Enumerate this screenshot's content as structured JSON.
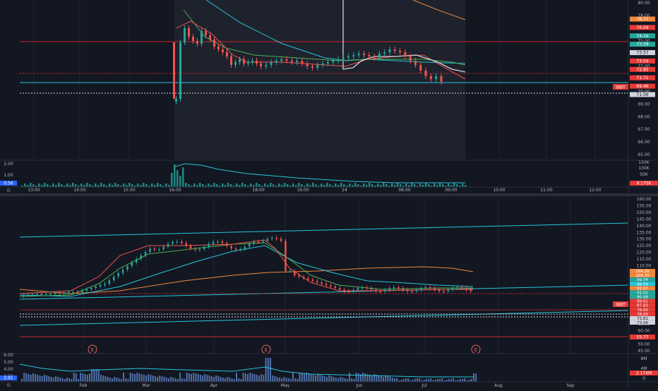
{
  "colors": {
    "background": "#131722",
    "grid": "#1f2330",
    "axis_text": "#b2b5be",
    "up": "#26a69a",
    "down": "#ef5350",
    "cyan_line": "#26c6da",
    "orange_line": "#f0883e",
    "red_level": "#c62828",
    "white_level": "#d1d4dc",
    "volume": "#5c7fbf",
    "session_shade": "#1e222d",
    "earnings": "#e0645c"
  },
  "intraday_chart": {
    "y_axis_ticks": [
      "80.00",
      "78.00",
      "77.00",
      "75.00",
      "74.00",
      "72.00",
      "71.00",
      "70.00",
      "69.00",
      "68.00",
      "67.00",
      "66.00",
      "65.00"
    ],
    "price_badges": [
      {
        "label": "76.77",
        "color": "#f0883e"
      },
      {
        "label": "76.09",
        "color": "#e53935"
      },
      {
        "label": "74.16",
        "color": "#26a69a"
      },
      {
        "label": "73.59",
        "color": "#26a69a"
      },
      {
        "label": "73.57",
        "color": "#d1d4dc"
      },
      {
        "label": "73.04",
        "color": "#e53935"
      },
      {
        "label": "72.85",
        "color": "#e53935"
      },
      {
        "label": "71.71",
        "color": "#e53935"
      },
      {
        "label": "69.46",
        "color": "#e53935"
      },
      {
        "label": "71.06",
        "color": "#d1d4dc"
      }
    ],
    "symbol_badge": "IBBT",
    "volume_axis": [
      "150K",
      "100K",
      "50K"
    ],
    "volume_badge": "9.175K",
    "indicator_axis": [
      "2.00",
      "1.00"
    ],
    "indicator_badge": "0.56",
    "x_axis_labels": [
      "13:00",
      "14:00",
      "15:00",
      "16:00",
      "18:00",
      "19:00",
      "24",
      "08:00",
      "09:00",
      "10:00",
      "11:00",
      "12:00"
    ]
  },
  "daily_chart": {
    "y_axis_ticks": [
      "160.00",
      "155.00",
      "150.00",
      "145.00",
      "140.00",
      "135.00",
      "130.00",
      "125.00",
      "120.00",
      "115.00",
      "110.00",
      "105.00",
      "65.00",
      "60.00",
      "55.00",
      "50.00",
      "45.00"
    ],
    "price_badges": [
      {
        "label": "104.28",
        "color": "#f0883e"
      },
      {
        "label": "104.20",
        "color": "#f0883e"
      },
      {
        "label": "99.74",
        "color": "#26a69a"
      },
      {
        "label": "98.59",
        "color": "#26c6da"
      },
      {
        "label": "91.07",
        "color": "#f0883e"
      },
      {
        "label": "91.02",
        "color": "#26a69a"
      },
      {
        "label": "90.49",
        "color": "#26a69a"
      },
      {
        "label": "89.61",
        "color": "#e53935"
      },
      {
        "label": "87.83",
        "color": "#e53935"
      },
      {
        "label": "78.00",
        "color": "#e53935"
      },
      {
        "label": "78.09",
        "color": "#e53935"
      },
      {
        "label": "73.81",
        "color": "#d1d4dc"
      },
      {
        "label": "73.06",
        "color": "#d1d4dc"
      },
      {
        "label": "55.77",
        "color": "#e53935"
      }
    ],
    "symbol_badge": "IBBT",
    "earnings_marker": "E",
    "volume_axis": [
      "8M",
      "4M",
      "0"
    ],
    "volume_badge": "2.174M",
    "indicator_axis": [
      "6.00",
      "5.00",
      "4.00",
      "3.00"
    ],
    "indicator_badge": "2.91",
    "x_axis_labels": [
      "Feb",
      "Mar",
      "Apr",
      "May",
      "Jun",
      "Jul",
      "Aug",
      "Sep"
    ]
  }
}
